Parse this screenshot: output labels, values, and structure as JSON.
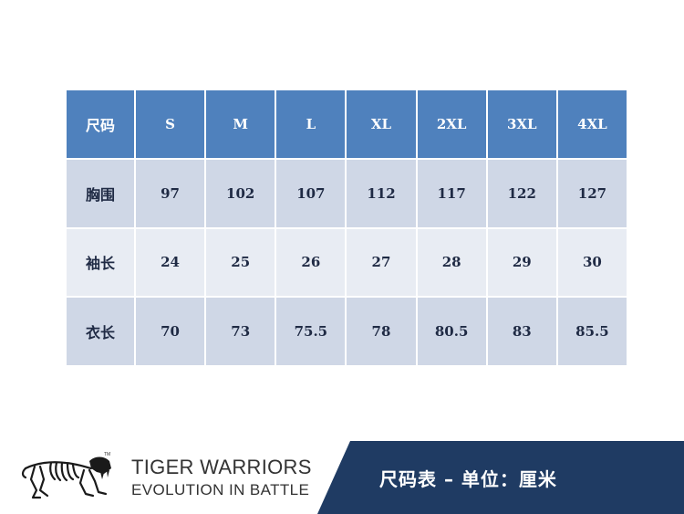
{
  "table": {
    "header": [
      "尺码",
      "S",
      "M",
      "L",
      "XL",
      "2XL",
      "3XL",
      "4XL"
    ],
    "rows": [
      {
        "label": "胸围",
        "values": [
          "97",
          "102",
          "107",
          "112",
          "117",
          "122",
          "127"
        ]
      },
      {
        "label": "袖长",
        "values": [
          "24",
          "25",
          "26",
          "27",
          "28",
          "29",
          "30"
        ]
      },
      {
        "label": "衣长",
        "values": [
          "70",
          "73",
          "75.5",
          "78",
          "80.5",
          "83",
          "85.5"
        ]
      }
    ]
  },
  "footer": {
    "brand_line1": "TIGER WARRIORS",
    "brand_line2": "EVOLUTION IN BATTLE",
    "logo_mark": "TM",
    "logo_icon": "tiger-skeleton-icon",
    "banner_text": "尺码表 – 单位：厘米"
  },
  "colors": {
    "header_blue": "#4f81bd",
    "row_dark": "#cfd7e6",
    "row_light": "#e8ecf3",
    "banner_navy": "#1f3b63"
  }
}
